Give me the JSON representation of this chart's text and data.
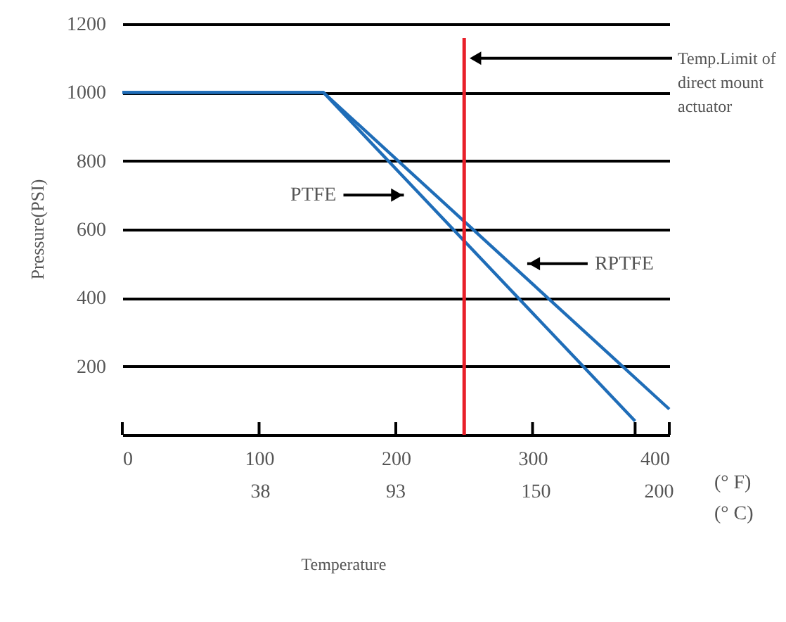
{
  "chart_data": {
    "type": "line",
    "xlabel": "Temperature",
    "ylabel": "Pressure(PSI)",
    "xlim": [
      0,
      400
    ],
    "ylim": [
      0,
      1200
    ],
    "xticks": [
      0,
      100,
      200,
      300,
      {
        "value": 375,
        "label": null
      },
      400
    ],
    "x2lim": [
      -17.8,
      204.4
    ],
    "x2ticks": [
      38,
      93,
      150,
      200
    ],
    "yticks": [
      200,
      400,
      600,
      800,
      1000,
      1200
    ],
    "grid": "y",
    "marker": "none",
    "line_style": "solid",
    "series": [
      {
        "name": "PTFE",
        "color": "#1f6db8",
        "x": [
          0,
          147,
          375
        ],
        "values": [
          1000,
          1000,
          40
        ]
      },
      {
        "name": "RPTFE",
        "color": "#1f6db8",
        "x": [
          0,
          147,
          400
        ],
        "values": [
          1000,
          1000,
          75
        ]
      }
    ],
    "ref_lines": [
      {
        "axis": "x",
        "value": 250,
        "label": "Temp.Limit of\ndirect mount\nactuator",
        "color": "#e8202a"
      }
    ],
    "annotations": [
      "(° F)",
      "(° C)"
    ]
  }
}
